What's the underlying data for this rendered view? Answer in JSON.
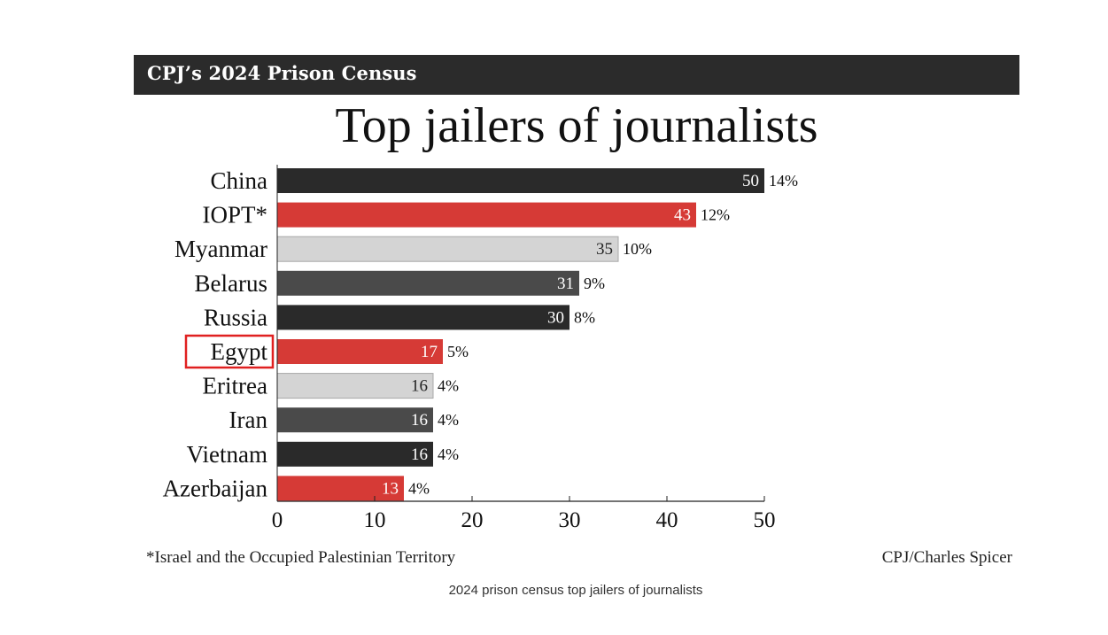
{
  "header": {
    "banner": "CPJ’s 2024 Prison Census"
  },
  "chart_data": {
    "type": "bar",
    "orientation": "horizontal",
    "title": "Top jailers of journalists",
    "categories": [
      "China",
      "IOPT*",
      "Myanmar",
      "Belarus",
      "Russia",
      "Egypt",
      "Eritrea",
      "Iran",
      "Vietnam",
      "Azerbaijan"
    ],
    "values": [
      50,
      43,
      35,
      31,
      30,
      17,
      16,
      16,
      16,
      13
    ],
    "value_labels": [
      "50",
      "43",
      "35",
      "31",
      "30",
      "17",
      "16",
      "16",
      "16",
      "13"
    ],
    "percent_labels": [
      "14%",
      "12%",
      "10%",
      "9%",
      "8%",
      "5%",
      "4%",
      "4%",
      "4%",
      "4%"
    ],
    "bar_colors": [
      "#2a2a2a",
      "#d63a36",
      "#d4d4d4",
      "#4a4a4a",
      "#2a2a2a",
      "#d63a36",
      "#d4d4d4",
      "#4a4a4a",
      "#2a2a2a",
      "#d63a36"
    ],
    "label_colors": [
      "#ffffff",
      "#ffffff",
      "#222222",
      "#ffffff",
      "#ffffff",
      "#ffffff",
      "#222222",
      "#ffffff",
      "#ffffff",
      "#ffffff"
    ],
    "highlighted_category": "Egypt",
    "highlight_color": "#e02020",
    "xlim": [
      0,
      50
    ],
    "xticks": [
      0,
      10,
      20,
      30,
      40,
      50
    ],
    "xlabel": "",
    "ylabel": "",
    "grid": false,
    "legend": null
  },
  "footer": {
    "footnote": "*Israel and the Occupied Palestinian Territory",
    "credit": "CPJ/Charles Spicer"
  },
  "caption": "2024 prison census top jailers of journalists"
}
